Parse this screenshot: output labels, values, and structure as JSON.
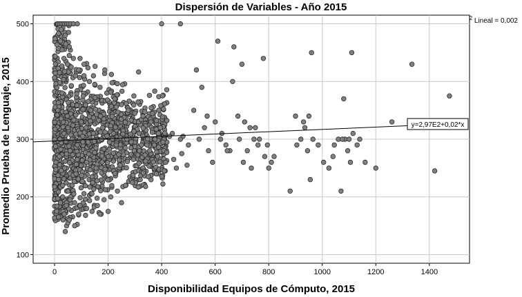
{
  "chart_data": {
    "type": "scatter",
    "title": "Dispersión de Variables - Año 2015",
    "xlabel": "Disponibilidad Equipos de Cómputo, 2015",
    "ylabel": "Promedio Prueba de Lenguaje, 2015",
    "xlim": [
      -80,
      1550
    ],
    "ylim": [
      85,
      515
    ],
    "xticks": [
      0,
      200,
      400,
      600,
      800,
      1000,
      1200,
      1400
    ],
    "yticks": [
      100,
      200,
      300,
      400,
      500
    ],
    "grid": true,
    "marker_color": "#808080",
    "marker_edge": "#2b2b2b",
    "r2_label": {
      "prefix": "R",
      "sup": "2",
      "suffix": " Lineal = 0,002"
    },
    "fit": {
      "intercept": 297,
      "slope": 0.02,
      "label": "y=2,97E2+0,02*x"
    },
    "x": [
      10,
      25,
      40,
      55,
      70,
      90,
      110,
      130,
      150,
      170,
      195,
      225,
      250,
      275,
      300,
      330,
      360,
      395,
      440,
      480,
      15,
      30,
      45,
      60,
      75,
      95,
      115,
      140,
      160,
      185,
      210,
      235,
      265,
      290,
      320,
      350,
      380,
      410,
      455,
      495,
      20,
      35,
      50,
      65,
      85,
      105,
      125,
      145,
      175,
      205,
      230,
      260,
      285,
      315,
      345,
      375,
      405,
      430,
      470,
      500,
      5,
      12,
      18,
      28,
      38,
      48,
      58,
      68,
      80,
      100,
      120,
      135,
      155,
      180,
      200,
      220,
      245,
      270,
      295,
      325,
      355,
      385,
      415,
      445,
      475,
      520,
      540,
      560,
      575,
      590,
      610,
      625,
      640,
      655,
      670,
      690,
      705,
      720,
      735,
      750,
      765,
      780,
      795,
      810,
      530,
      550,
      570,
      600,
      620,
      645,
      665,
      685,
      710,
      730,
      745,
      760,
      785,
      800,
      880,
      905,
      920,
      935,
      945,
      955,
      965,
      985,
      1005,
      1025,
      1045,
      1060,
      1070,
      1085,
      1095,
      1105,
      1115,
      1130,
      1140,
      1160,
      900,
      930,
      950,
      1040,
      1075,
      1080,
      1100,
      1200,
      1260,
      1335,
      1420,
      1475,
      1110,
      960,
      820,
      700,
      470,
      400,
      40,
      45,
      50,
      55,
      75,
      90,
      120,
      170,
      200,
      250,
      12,
      18,
      25,
      32,
      38,
      45,
      52,
      60,
      70,
      85,
      22,
      28,
      35,
      42,
      48,
      55,
      62,
      78,
      95,
      110,
      8,
      15,
      22,
      30,
      36,
      44,
      50,
      58,
      66,
      72
    ],
    "y": [
      500,
      490,
      480,
      460,
      440,
      420,
      410,
      400,
      395,
      390,
      380,
      370,
      360,
      350,
      345,
      340,
      330,
      320,
      310,
      305,
      230,
      220,
      210,
      200,
      190,
      185,
      180,
      175,
      185,
      195,
      200,
      210,
      220,
      225,
      230,
      235,
      240,
      245,
      250,
      255,
      300,
      310,
      320,
      300,
      290,
      305,
      295,
      310,
      300,
      295,
      290,
      300,
      285,
      310,
      290,
      300,
      295,
      305,
      300,
      290,
      260,
      350,
      270,
      380,
      250,
      340,
      280,
      360,
      240,
      330,
      260,
      350,
      250,
      320,
      270,
      310,
      255,
      300,
      265,
      290,
      280,
      270,
      260,
      265,
      275,
      350,
      300,
      320,
      280,
      260,
      470,
      310,
      290,
      280,
      460,
      300,
      260,
      280,
      250,
      320,
      300,
      440,
      290,
      260,
      420,
      390,
      340,
      330,
      300,
      280,
      400,
      340,
      330,
      320,
      300,
      290,
      270,
      250,
      210,
      290,
      300,
      320,
      280,
      230,
      300,
      290,
      260,
      250,
      290,
      300,
      210,
      300,
      280,
      260,
      310,
      290,
      300,
      260,
      340,
      330,
      340,
      270,
      300,
      370,
      300,
      250,
      330,
      430,
      245,
      375,
      450,
      450,
      270,
      430,
      500,
      500,
      140,
      150,
      155,
      160,
      150,
      170,
      180,
      170,
      175,
      190,
      500,
      500,
      500,
      500,
      500,
      500,
      500,
      500,
      500,
      500,
      470,
      455,
      440,
      465,
      430,
      445,
      425,
      410,
      440,
      430,
      175,
      165,
      190,
      200,
      170,
      185,
      210,
      195,
      220,
      205
    ]
  }
}
